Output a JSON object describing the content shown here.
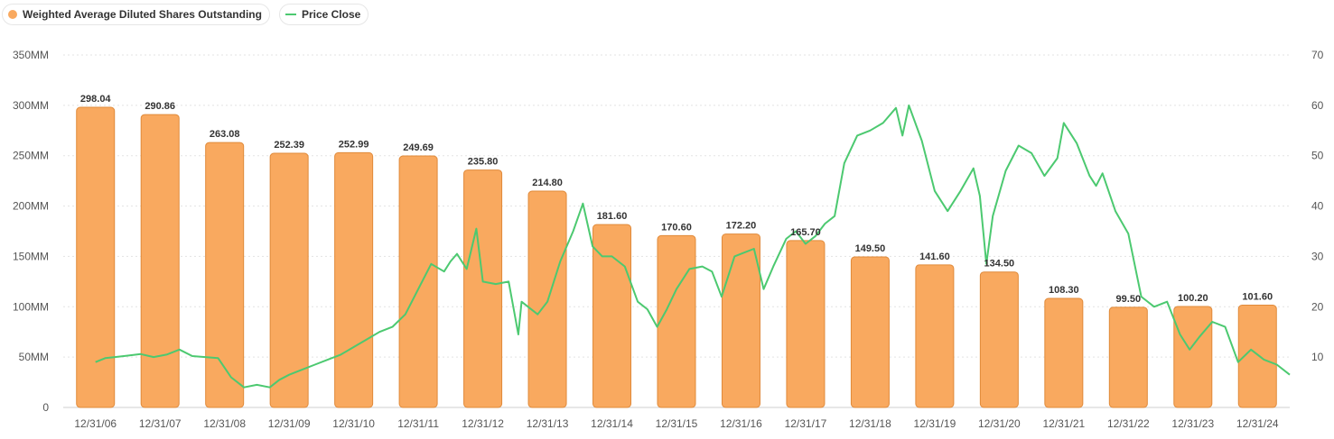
{
  "legend": {
    "bars_label": "Weighted Average Diluted Shares Outstanding",
    "line_label": "Price Close"
  },
  "colors": {
    "bar_fill": "#f9a95f",
    "bar_stroke": "#e08a3a",
    "line": "#4cc970",
    "grid": "#e3e3e3"
  },
  "chart_data": {
    "type": "bar",
    "categories": [
      "12/31/06",
      "12/31/07",
      "12/31/08",
      "12/31/09",
      "12/31/10",
      "12/31/11",
      "12/31/12",
      "12/31/13",
      "12/31/14",
      "12/31/15",
      "12/31/16",
      "12/31/17",
      "12/31/18",
      "12/31/19",
      "12/31/20",
      "12/31/21",
      "12/31/22",
      "12/31/23",
      "12/31/24"
    ],
    "series": [
      {
        "name": "Weighted Average Diluted Shares Outstanding",
        "type": "bar",
        "axis": "left",
        "values": [
          298.04,
          290.86,
          263.08,
          252.39,
          252.99,
          249.69,
          235.8,
          214.8,
          181.6,
          170.6,
          172.2,
          165.7,
          149.5,
          141.6,
          134.5,
          108.3,
          99.5,
          100.2,
          101.6
        ],
        "labels": [
          "298.04",
          "290.86",
          "263.08",
          "252.39",
          "252.99",
          "249.69",
          "235.80",
          "214.80",
          "181.60",
          "170.60",
          "172.20",
          "165.70",
          "149.50",
          "141.60",
          "134.50",
          "108.30",
          "99.50",
          "100.20",
          "101.60"
        ]
      },
      {
        "name": "Price Close",
        "type": "line",
        "axis": "right",
        "x": [
          2006.0,
          2006.15,
          2006.3,
          2006.5,
          2006.7,
          2006.9,
          2007.1,
          2007.3,
          2007.5,
          2007.7,
          2007.9,
          2008.1,
          2008.3,
          2008.5,
          2008.7,
          2008.85,
          2009.0,
          2009.2,
          2009.4,
          2009.6,
          2009.8,
          2010.0,
          2010.2,
          2010.4,
          2010.6,
          2010.8,
          2011.0,
          2011.2,
          2011.4,
          2011.5,
          2011.6,
          2011.75,
          2011.9,
          2012.0,
          2012.2,
          2012.4,
          2012.55,
          2012.6,
          2012.7,
          2012.85,
          2013.0,
          2013.2,
          2013.4,
          2013.55,
          2013.7,
          2013.85,
          2014.0,
          2014.2,
          2014.4,
          2014.55,
          2014.7,
          2014.85,
          2015.0,
          2015.2,
          2015.4,
          2015.55,
          2015.7,
          2015.9,
          2016.0,
          2016.2,
          2016.35,
          2016.5,
          2016.7,
          2016.85,
          2017.0,
          2017.15,
          2017.3,
          2017.45,
          2017.6,
          2017.8,
          2018.0,
          2018.2,
          2018.4,
          2018.5,
          2018.6,
          2018.8,
          2019.0,
          2019.2,
          2019.4,
          2019.6,
          2019.7,
          2019.8,
          2019.9,
          2020.1,
          2020.3,
          2020.5,
          2020.7,
          2020.9,
          2021.0,
          2021.2,
          2021.4,
          2021.5,
          2021.6,
          2021.8,
          2022.0,
          2022.2,
          2022.4,
          2022.6,
          2022.8,
          2022.95,
          2023.1,
          2023.3,
          2023.5,
          2023.7,
          2023.9,
          2024.1,
          2024.3,
          2024.5
        ],
        "values": [
          9.0,
          9.8,
          10.0,
          10.3,
          10.6,
          10.0,
          10.5,
          11.5,
          10.2,
          10.0,
          9.8,
          6.0,
          4.0,
          4.5,
          4.0,
          5.5,
          6.5,
          7.5,
          8.5,
          9.5,
          10.5,
          12.0,
          13.5,
          15.0,
          16.0,
          18.5,
          23.5,
          28.5,
          27.0,
          29.0,
          30.5,
          27.5,
          35.5,
          25.0,
          24.5,
          25.0,
          14.5,
          21.0,
          20.0,
          18.5,
          21.0,
          29.0,
          35.0,
          40.5,
          32.0,
          30.0,
          30.0,
          28.0,
          21.0,
          19.5,
          16.0,
          19.5,
          23.5,
          27.5,
          28.0,
          27.0,
          22.0,
          30.0,
          30.5,
          31.5,
          23.5,
          28.0,
          33.5,
          35.0,
          32.5,
          34.0,
          36.5,
          38.0,
          48.5,
          54.0,
          55.0,
          56.5,
          59.5,
          54.0,
          60.0,
          53.0,
          43.0,
          39.0,
          43.0,
          47.5,
          42.0,
          28.5,
          38.0,
          47.0,
          52.0,
          50.5,
          46.0,
          49.5,
          56.5,
          52.5,
          46.0,
          44.0,
          46.5,
          39.0,
          34.5,
          22.0,
          20.0,
          21.0,
          14.5,
          11.5,
          14.0,
          17.0,
          16.0,
          9.0,
          11.5,
          9.5,
          8.5,
          6.5
        ]
      }
    ],
    "y_left": {
      "ticks": [
        "0",
        "50MM",
        "100MM",
        "150MM",
        "200MM",
        "250MM",
        "300MM",
        "350MM"
      ],
      "range": [
        0,
        350
      ]
    },
    "y_right": {
      "ticks": [
        "",
        "10",
        "20",
        "30",
        "40",
        "50",
        "60",
        "70"
      ],
      "range": [
        0,
        70
      ]
    },
    "grid": true,
    "legend_position": "top-left"
  }
}
